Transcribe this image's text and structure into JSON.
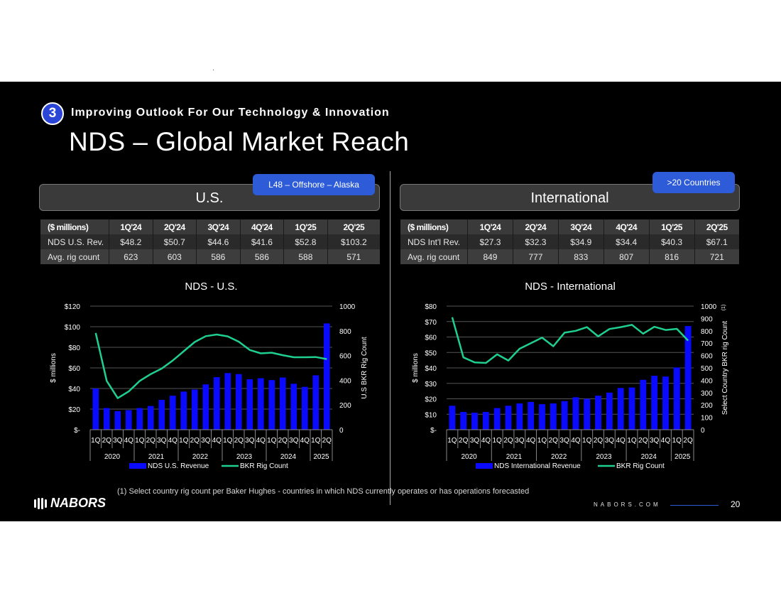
{
  "slide": {
    "section_number": "3",
    "subtitle": "Improving Outlook For Our Technology & Innovation",
    "title": "NDS – Global Market Reach",
    "footnote": "(1)   Select country rig count per Baker Hughes - countries in which NDS currently operates or has operations forecasted",
    "logo_text": "NABORS",
    "website": "NABORS.COM",
    "page_number": "20"
  },
  "colors": {
    "bar": "#0a0aff",
    "line": "#1fcf8f",
    "tag": "#2e5bd8",
    "background": "#000000"
  },
  "us": {
    "header": "U.S.",
    "tag": "L48 – Offshore – Alaska",
    "table": {
      "headers": [
        "($ millions)",
        "1Q'24",
        "2Q'24",
        "3Q'24",
        "4Q'24",
        "1Q'25",
        "2Q'25"
      ],
      "rows": [
        [
          "NDS U.S. Rev.",
          "$48.2",
          "$50.7",
          "$44.6",
          "$41.6",
          "$52.8",
          "$103.2"
        ],
        [
          "Avg. rig count",
          "623",
          "603",
          "586",
          "586",
          "588",
          "571"
        ]
      ]
    }
  },
  "intl": {
    "header": "International",
    "tag": ">20 Countries",
    "table": {
      "headers": [
        "($ millions)",
        "1Q'24",
        "2Q'24",
        "3Q'24",
        "4Q'24",
        "1Q'25",
        "2Q'25"
      ],
      "rows": [
        [
          "NDS Int'l Rev.",
          "$27.3",
          "$32.3",
          "$34.9",
          "$34.4",
          "$40.3",
          "$67.1"
        ],
        [
          "Avg. rig count",
          "849",
          "777",
          "833",
          "807",
          "816",
          "721"
        ]
      ]
    }
  },
  "chart_data": [
    {
      "type": "bar",
      "title": "NDS - U.S.",
      "ylabel": "$ millions",
      "y2label": "U.S BKR Rig Count",
      "ylim": [
        0,
        120
      ],
      "y2lim": [
        0,
        1000
      ],
      "yticks": [
        "$-",
        "$20",
        "$40",
        "$60",
        "$80",
        "$100",
        "$120"
      ],
      "y2ticks": [
        "0",
        "200",
        "400",
        "600",
        "800",
        "1000"
      ],
      "grid": true,
      "legend": "bottom",
      "quarters": [
        "1Q",
        "2Q",
        "3Q",
        "4Q",
        "1Q",
        "2Q",
        "3Q",
        "4Q",
        "1Q",
        "2Q",
        "3Q",
        "4Q",
        "1Q",
        "2Q",
        "3Q",
        "4Q",
        "1Q",
        "2Q",
        "3Q",
        "4Q",
        "1Q",
        "2Q"
      ],
      "years": [
        "2020",
        "2021",
        "2022",
        "2023",
        "2024",
        "2025"
      ],
      "series": [
        {
          "name": "NDS U.S. Revenue",
          "kind": "bar",
          "axis": "left",
          "values": [
            40,
            21,
            18,
            19,
            21,
            23,
            29,
            33,
            37,
            39,
            44,
            51,
            55,
            54,
            49,
            50,
            48.2,
            50.7,
            44.6,
            41.6,
            52.8,
            103.2
          ]
        },
        {
          "name": "BKR Rig Count",
          "kind": "line",
          "axis": "right",
          "values": [
            783,
            395,
            255,
            310,
            395,
            450,
            495,
            560,
            635,
            710,
            757,
            770,
            755,
            712,
            645,
            618,
            623,
            603,
            586,
            586,
            588,
            571
          ]
        }
      ]
    },
    {
      "type": "bar",
      "title": "NDS - International",
      "ylabel": "$ millions",
      "y2label": "Select Country BKR rig Count",
      "y2label_note": "(1)",
      "ylim": [
        0,
        80
      ],
      "y2lim": [
        0,
        1000
      ],
      "yticks": [
        "$-",
        "$10",
        "$20",
        "$30",
        "$40",
        "$50",
        "$60",
        "$70",
        "$80"
      ],
      "y2ticks": [
        "0",
        "100",
        "200",
        "300",
        "400",
        "500",
        "600",
        "700",
        "800",
        "900",
        "1000"
      ],
      "grid": true,
      "legend": "bottom",
      "quarters": [
        "1Q",
        "2Q",
        "3Q",
        "4Q",
        "1Q",
        "2Q",
        "3Q",
        "4Q",
        "1Q",
        "2Q",
        "3Q",
        "4Q",
        "1Q",
        "2Q",
        "3Q",
        "4Q",
        "1Q",
        "2Q",
        "3Q",
        "4Q",
        "1Q",
        "2Q"
      ],
      "years": [
        "2020",
        "2021",
        "2022",
        "2023",
        "2024",
        "2025"
      ],
      "series": [
        {
          "name": "NDS International Revenue",
          "kind": "bar",
          "axis": "left",
          "values": [
            15.5,
            11.5,
            11,
            11.5,
            14,
            15.5,
            17,
            18,
            16.5,
            17,
            18.5,
            21,
            20,
            22,
            24,
            27,
            27.3,
            32.3,
            34.9,
            34.4,
            40.3,
            67.1
          ]
        },
        {
          "name": "BKR Rig Count",
          "kind": "line",
          "axis": "right",
          "values": [
            910,
            585,
            545,
            540,
            610,
            560,
            655,
            700,
            745,
            675,
            785,
            800,
            830,
            755,
            815,
            830,
            849,
            777,
            833,
            807,
            816,
            721
          ]
        }
      ]
    }
  ]
}
